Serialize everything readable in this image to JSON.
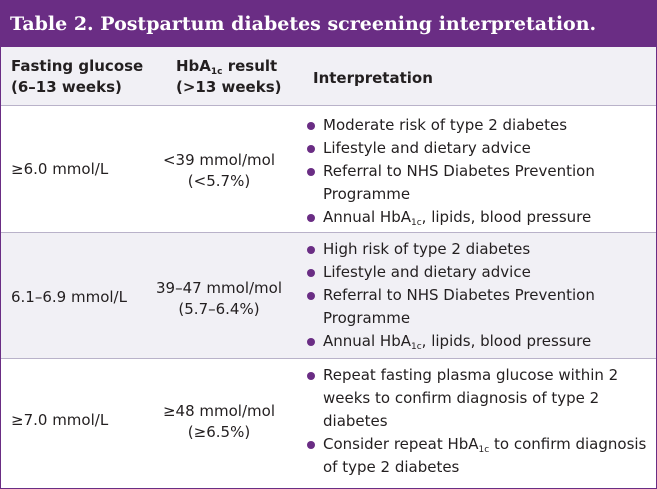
{
  "title": "Table 2. Postpartum diabetes screening interpretation.",
  "colors": {
    "header_bar": "#6a2d84",
    "bullet": "#6a2d84",
    "alt_row_bg": "#f1f0f5"
  },
  "headers": {
    "fasting_line1": "Fasting glucose",
    "fasting_line2": "(6–13 weeks)",
    "hba1c_prefix": "HbA",
    "hba1c_sub": "1c",
    "hba1c_suffix": " result",
    "hba1c_line2": "(>13 weeks)",
    "interpretation": "Interpretation"
  },
  "rows": [
    {
      "fasting": "≥6.0 mmol/L",
      "hba1c_line1": "<39 mmol/mol",
      "hba1c_line2": "(<5.7%)",
      "bullets": {
        "b1": "Moderate risk of type 2 diabetes",
        "b2": "Lifestyle and dietary advice",
        "b3": "Referral to NHS Diabetes Prevention Programme",
        "b4_prefix": "Annual HbA",
        "b4_sub": "1c",
        "b4_suffix": ", lipids, blood pressure"
      }
    },
    {
      "fasting": "6.1–6.9 mmol/L",
      "hba1c_line1": "39–47 mmol/mol",
      "hba1c_line2": "(5.7–6.4%)",
      "bullets": {
        "b1": "High risk of type 2 diabetes",
        "b2": "Lifestyle and dietary advice",
        "b3": "Referral to NHS Diabetes Prevention Programme",
        "b4_prefix": "Annual HbA",
        "b4_sub": "1c",
        "b4_suffix": ", lipids, blood pressure"
      }
    },
    {
      "fasting": "≥7.0 mmol/L",
      "hba1c_line1": "≥48 mmol/mol",
      "hba1c_line2": "(≥6.5%)",
      "bullets": {
        "b1": "Repeat fasting plasma glucose within 2 weeks to confirm diagnosis of type 2 diabetes",
        "b2_prefix": "Consider repeat HbA",
        "b2_sub": "1c",
        "b2_suffix": " to confirm diagnosis of type 2 diabetes"
      }
    }
  ]
}
